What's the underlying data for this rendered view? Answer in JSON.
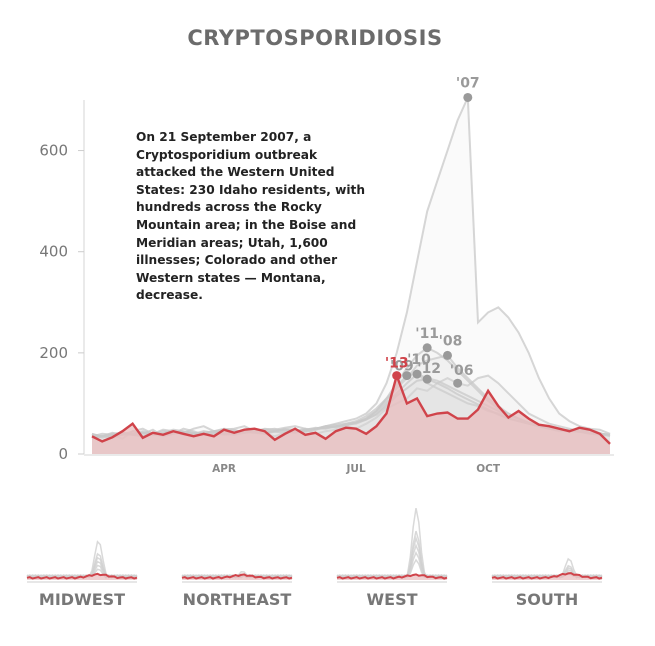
{
  "chart_data": {
    "type": "line",
    "title": "CRYPTOSPORIDIOSIS",
    "annotation": "On 21 September 2007, a Cryptosporidium outbreak attacked the Western United States: 230 Idaho residents, with hundreds across the Rocky Mountain area; in the Boise and Meridian areas; Utah, 1,600 illnesses; Colorado and other Western states — Montana, decrease.",
    "ylim": [
      0,
      700
    ],
    "y_ticks": [
      0,
      200,
      400,
      600
    ],
    "x_range": [
      1,
      52
    ],
    "x_ticks": [
      {
        "label": "APR",
        "week": 14
      },
      {
        "label": "JUL",
        "week": 27
      },
      {
        "label": "OCT",
        "week": 40
      }
    ],
    "highlight_color": "#d0434a",
    "highlight_fill": "#e8bcbd",
    "history_color": "#c8c8c8",
    "highlight_series": {
      "name": "'13",
      "values": [
        35,
        25,
        33,
        45,
        60,
        32,
        42,
        38,
        45,
        40,
        35,
        40,
        35,
        48,
        42,
        48,
        50,
        45,
        28,
        40,
        50,
        38,
        42,
        30,
        45,
        52,
        50,
        40,
        55,
        80,
        155,
        100,
        110,
        75,
        80,
        82,
        70,
        70,
        88,
        125,
        95,
        72,
        85,
        70,
        58,
        55,
        50,
        45,
        52,
        48,
        40,
        20
      ]
    },
    "history_series": [
      {
        "name": "'06",
        "values": [
          40,
          32,
          38,
          30,
          45,
          40,
          48,
          35,
          40,
          50,
          45,
          38,
          42,
          48,
          40,
          45,
          50,
          40,
          35,
          42,
          45,
          50,
          40,
          45,
          48,
          55,
          50,
          60,
          72,
          90,
          100,
          110,
          130,
          125,
          140,
          150,
          140,
          135,
          150,
          155,
          140,
          120,
          100,
          80,
          70,
          60,
          55,
          50,
          45,
          48,
          42,
          35
        ]
      },
      {
        "name": "'07",
        "values": [
          40,
          35,
          42,
          38,
          45,
          50,
          40,
          48,
          45,
          42,
          50,
          55,
          45,
          48,
          50,
          55,
          45,
          50,
          48,
          52,
          55,
          50,
          48,
          55,
          60,
          65,
          70,
          80,
          100,
          140,
          200,
          280,
          380,
          480,
          540,
          600,
          660,
          705,
          260,
          280,
          290,
          270,
          240,
          200,
          150,
          110,
          80,
          65,
          55,
          50,
          48,
          40
        ]
      },
      {
        "name": "'08",
        "values": [
          30,
          35,
          32,
          40,
          38,
          35,
          42,
          40,
          45,
          38,
          40,
          45,
          42,
          38,
          40,
          45,
          48,
          42,
          45,
          50,
          48,
          45,
          50,
          55,
          52,
          60,
          65,
          75,
          90,
          110,
          130,
          150,
          175,
          185,
          190,
          195,
          170,
          150,
          130,
          110,
          95,
          80,
          70,
          60,
          55,
          50,
          48,
          45,
          50,
          42,
          40,
          38
        ]
      },
      {
        "name": "'09",
        "values": [
          35,
          40,
          38,
          42,
          40,
          45,
          38,
          42,
          48,
          45,
          42,
          38,
          45,
          50,
          48,
          42,
          45,
          48,
          50,
          45,
          42,
          48,
          50,
          55,
          58,
          60,
          62,
          70,
          85,
          105,
          135,
          155,
          160,
          140,
          130,
          120,
          110,
          100,
          95,
          85,
          80,
          70,
          65,
          60,
          55,
          50,
          45,
          48,
          44,
          40,
          38,
          36
        ]
      },
      {
        "name": "'10",
        "values": [
          38,
          35,
          40,
          42,
          38,
          36,
          40,
          45,
          42,
          40,
          38,
          42,
          45,
          40,
          38,
          42,
          45,
          48,
          44,
          42,
          45,
          48,
          52,
          50,
          55,
          58,
          60,
          68,
          80,
          100,
          120,
          140,
          158,
          150,
          145,
          135,
          125,
          115,
          105,
          95,
          85,
          75,
          70,
          62,
          58,
          52,
          48,
          46,
          44,
          42,
          40,
          38
        ]
      },
      {
        "name": "'11",
        "values": [
          32,
          36,
          34,
          38,
          40,
          42,
          38,
          36,
          40,
          44,
          42,
          40,
          38,
          42,
          46,
          44,
          42,
          40,
          44,
          48,
          46,
          44,
          48,
          52,
          54,
          56,
          62,
          70,
          85,
          110,
          140,
          170,
          195,
          210,
          200,
          185,
          165,
          145,
          125,
          105,
          90,
          80,
          70,
          62,
          56,
          52,
          48,
          46,
          44,
          42,
          40,
          38
        ]
      },
      {
        "name": "'12",
        "values": [
          36,
          34,
          38,
          40,
          38,
          42,
          40,
          38,
          42,
          44,
          40,
          42,
          44,
          40,
          42,
          46,
          44,
          42,
          46,
          48,
          44,
          46,
          50,
          52,
          55,
          58,
          62,
          68,
          78,
          95,
          115,
          130,
          145,
          148,
          140,
          130,
          118,
          108,
          98,
          88,
          78,
          70,
          65,
          60,
          55,
          50,
          48,
          46,
          44,
          42,
          40,
          38
        ]
      }
    ],
    "labeled_points": [
      {
        "label": "'07",
        "week": 38,
        "value": 705
      },
      {
        "label": "'11",
        "week": 34,
        "value": 210
      },
      {
        "label": "'08",
        "week": 36,
        "value": 195
      },
      {
        "label": "'09",
        "week": 32,
        "value": 155
      },
      {
        "label": "'10",
        "week": 33,
        "value": 158
      },
      {
        "label": "'12",
        "week": 34,
        "value": 148
      },
      {
        "label": "'06",
        "week": 37,
        "value": 140
      },
      {
        "label": "'13",
        "week": 31,
        "value": 155,
        "highlight": true
      }
    ],
    "regions": [
      {
        "name": "MIDWEST",
        "peak": 0.55,
        "peak_pos": 0.65,
        "highlight_bump": 0.12
      },
      {
        "name": "NORTHEAST",
        "peak": 0.12,
        "peak_pos": 0.55,
        "highlight_bump": 0.1
      },
      {
        "name": "WEST",
        "peak": 1.0,
        "peak_pos": 0.72,
        "highlight_bump": 0.1
      },
      {
        "name": "SOUTH",
        "peak": 0.3,
        "peak_pos": 0.7,
        "highlight_bump": 0.15
      }
    ]
  }
}
